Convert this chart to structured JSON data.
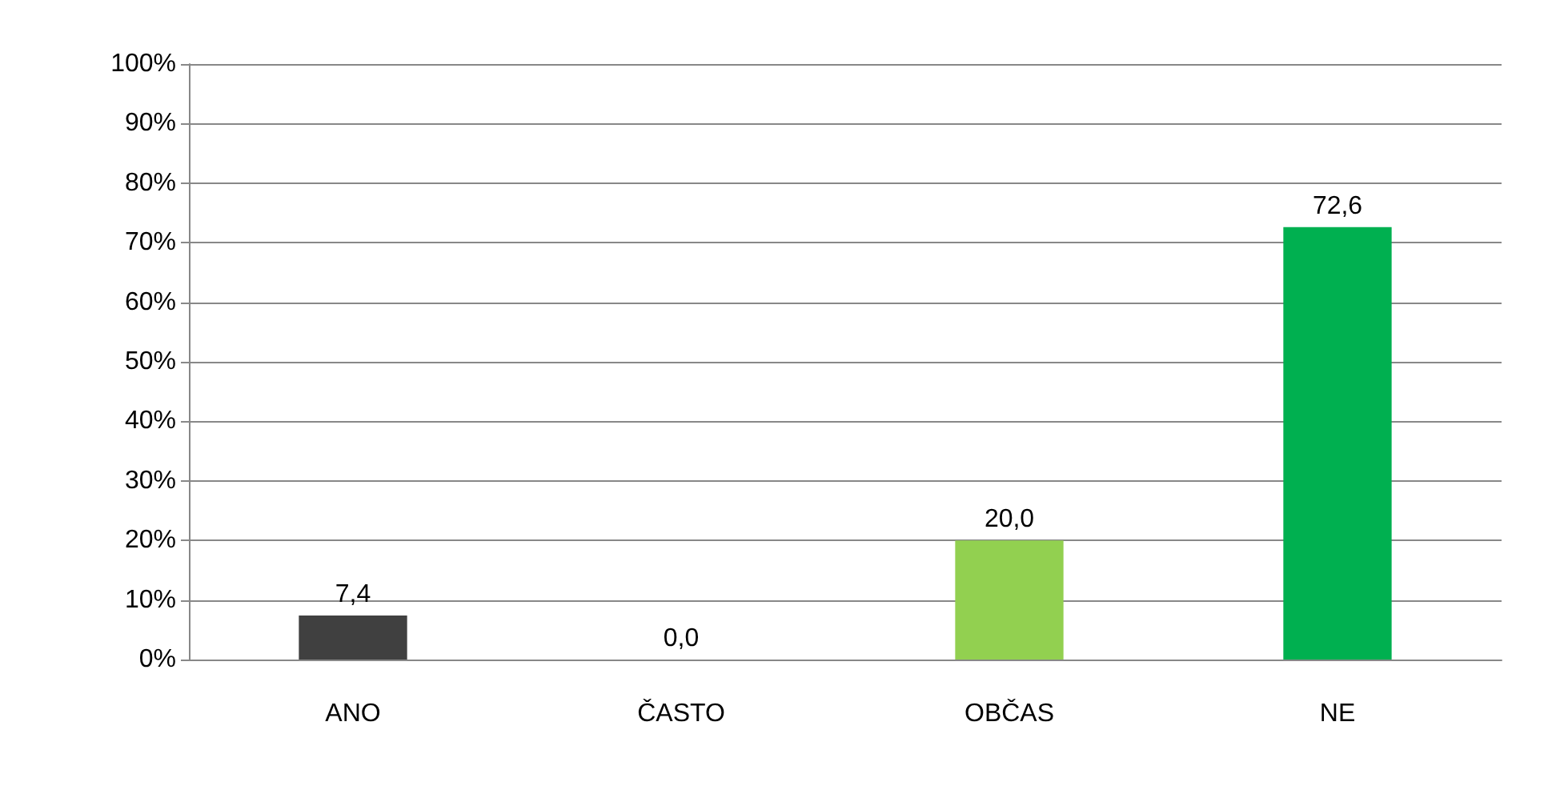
{
  "chart_data": {
    "type": "bar",
    "categories": [
      "ANO",
      "ČASTO",
      "OBČAS",
      "NE"
    ],
    "values": [
      7.4,
      0.0,
      20.0,
      72.6
    ],
    "colors": [
      "#404040",
      "#404040",
      "#92d050",
      "#00b050"
    ],
    "value_labels": [
      "7,4",
      "0,0",
      "20,0",
      "72,6"
    ],
    "ylim": [
      0,
      100
    ],
    "yticks": [
      {
        "value": 0,
        "label": "0%"
      },
      {
        "value": 10,
        "label": "10%"
      },
      {
        "value": 20,
        "label": "20%"
      },
      {
        "value": 30,
        "label": "30%"
      },
      {
        "value": 40,
        "label": "40%"
      },
      {
        "value": 50,
        "label": "50%"
      },
      {
        "value": 60,
        "label": "60%"
      },
      {
        "value": 70,
        "label": "70%"
      },
      {
        "value": 80,
        "label": "80%"
      },
      {
        "value": 90,
        "label": "90%"
      },
      {
        "value": 100,
        "label": "100%"
      }
    ],
    "grid": "y"
  }
}
